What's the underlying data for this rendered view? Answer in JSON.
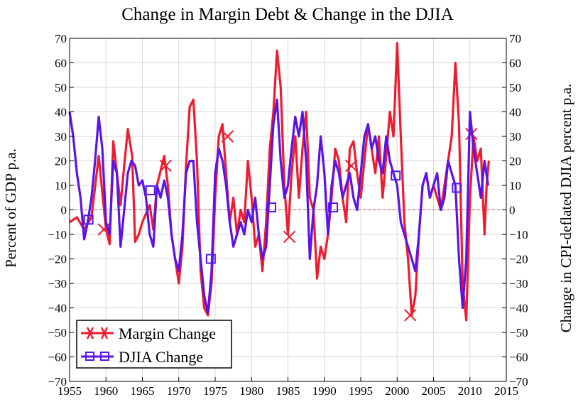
{
  "chart_data": {
    "type": "line",
    "title": "Change in Margin Debt & Change in the DJIA",
    "ylabel": "Percent of GDP p.a.",
    "y2label": "Change in CPI-deflated DJIA percent p.a.",
    "xlim": [
      1955,
      2015
    ],
    "ylim": [
      -70,
      70
    ],
    "y2lim": [
      -70,
      70
    ],
    "x_ticks": [
      1955,
      1960,
      1965,
      1970,
      1975,
      1980,
      1985,
      1990,
      1995,
      2000,
      2005,
      2010,
      2015
    ],
    "y_ticks": [
      -70,
      -60,
      -50,
      -40,
      -30,
      -20,
      -10,
      0,
      10,
      20,
      30,
      40,
      50,
      60,
      70
    ],
    "y_tick_labels": [
      "−70",
      "−60",
      "−50",
      "−40",
      "−30",
      "−20",
      "−10",
      "0",
      "10",
      "20",
      "30",
      "40",
      "50",
      "60",
      "70"
    ],
    "grid": true,
    "zero_line": true,
    "legend_position": "bottom-left",
    "series": [
      {
        "name": "Margin Change",
        "color": "#ee1c2e",
        "marker": "x",
        "axis": "left",
        "markers_at": [
          [
            1959.7,
            -8
          ],
          [
            1968.2,
            18
          ],
          [
            1976.7,
            30
          ],
          [
            1985.2,
            -11
          ],
          [
            1993.7,
            18
          ],
          [
            2001.8,
            -43
          ],
          [
            2010.2,
            31
          ]
        ],
        "x": [
          1955,
          1956,
          1957,
          1958,
          1959,
          1960,
          1960.5,
          1961,
          1962,
          1962.5,
          1963,
          1963.6,
          1964,
          1964.5,
          1965,
          1966,
          1966.5,
          1967,
          1968,
          1968.5,
          1969,
          1969.5,
          1970,
          1970.5,
          1971,
          1971.5,
          1972,
          1972.5,
          1973,
          1973.5,
          1974,
          1974.5,
          1975,
          1975.5,
          1976,
          1976.5,
          1977,
          1977.5,
          1978,
          1978.5,
          1979,
          1979.5,
          1980,
          1980.5,
          1981,
          1981.5,
          1982,
          1982.5,
          1983,
          1983.5,
          1984,
          1984.5,
          1985,
          1985.5,
          1986,
          1986.5,
          1987,
          1987.5,
          1988,
          1988.5,
          1989,
          1989.5,
          1990,
          1990.5,
          1991,
          1991.5,
          1992,
          1992.5,
          1993,
          1993.5,
          1994,
          1994.5,
          1995,
          1995.5,
          1996,
          1996.5,
          1997,
          1997.5,
          1998,
          1998.5,
          1999,
          1999.5,
          2000,
          2000.5,
          2001,
          2001.5,
          2002,
          2002.5,
          2003,
          2003.5,
          2004,
          2004.5,
          2005,
          2005.5,
          2006,
          2006.5,
          2007,
          2007.5,
          2008,
          2008.5,
          2009,
          2009.5,
          2010,
          2010.5,
          2011,
          2011.5,
          2012,
          2012.3,
          2012.6
        ],
        "y": [
          -5,
          -3,
          -8,
          -3,
          22,
          -8,
          -14,
          28,
          2,
          18,
          33,
          22,
          -13,
          -10,
          -5,
          2,
          -8,
          10,
          22,
          10,
          -10,
          -20,
          -30,
          -15,
          18,
          42,
          45,
          20,
          -25,
          -40,
          -43,
          -30,
          5,
          30,
          35,
          15,
          -5,
          5,
          -10,
          0,
          -5,
          20,
          5,
          -15,
          -10,
          -25,
          -5,
          25,
          40,
          65,
          50,
          10,
          -10,
          15,
          30,
          5,
          25,
          40,
          5,
          0,
          -28,
          -15,
          -20,
          -10,
          5,
          25,
          20,
          5,
          -5,
          25,
          28,
          15,
          5,
          20,
          35,
          25,
          15,
          30,
          5,
          22,
          40,
          30,
          68,
          30,
          -5,
          -20,
          -43,
          -35,
          -10,
          10,
          15,
          5,
          10,
          5,
          0,
          10,
          20,
          30,
          60,
          35,
          -30,
          -45,
          5,
          30,
          20,
          25,
          -10,
          10,
          20
        ]
      },
      {
        "name": "DJIA Change",
        "color": "#5a14ea",
        "marker": "square",
        "axis": "right",
        "markers_at": [
          [
            1957.6,
            -4
          ],
          [
            1966.1,
            8
          ],
          [
            1974.4,
            -20
          ],
          [
            1982.7,
            1
          ],
          [
            1991.2,
            1
          ],
          [
            1999.8,
            14
          ],
          [
            2008.2,
            9
          ]
        ],
        "x": [
          1955,
          1955.5,
          1956,
          1956.5,
          1957,
          1957.5,
          1958,
          1958.5,
          1959,
          1959.5,
          1960,
          1960.5,
          1961,
          1961.5,
          1962,
          1962.5,
          1963,
          1963.5,
          1964,
          1964.5,
          1965,
          1965.5,
          1966,
          1966.5,
          1967,
          1967.5,
          1968,
          1968.5,
          1969,
          1969.5,
          1970,
          1970.5,
          1971,
          1971.5,
          1972,
          1972.5,
          1973,
          1973.5,
          1974,
          1974.5,
          1975,
          1975.5,
          1976,
          1976.5,
          1977,
          1977.5,
          1978,
          1978.5,
          1979,
          1979.5,
          1980,
          1980.5,
          1981,
          1981.5,
          1982,
          1982.5,
          1983,
          1983.5,
          1984,
          1984.5,
          1985,
          1985.5,
          1986,
          1986.5,
          1987,
          1987.5,
          1988,
          1988.5,
          1989,
          1989.5,
          1990,
          1990.5,
          1991,
          1991.5,
          1992,
          1992.5,
          1993,
          1993.5,
          1994,
          1994.5,
          1995,
          1995.5,
          1996,
          1996.5,
          1997,
          1997.5,
          1998,
          1998.5,
          1999,
          1999.5,
          2000,
          2000.5,
          2001,
          2001.5,
          2002,
          2002.5,
          2003,
          2003.5,
          2004,
          2004.5,
          2005,
          2005.5,
          2006,
          2006.5,
          2007,
          2007.5,
          2008,
          2008.5,
          2009,
          2009.5,
          2010,
          2010.5,
          2011,
          2011.5,
          2012,
          2012.5
        ],
        "y": [
          40,
          30,
          15,
          5,
          -12,
          -5,
          5,
          20,
          38,
          25,
          -5,
          -10,
          20,
          15,
          -15,
          0,
          15,
          20,
          18,
          10,
          12,
          5,
          -10,
          -15,
          10,
          5,
          12,
          5,
          -10,
          -20,
          -25,
          -10,
          15,
          20,
          20,
          -5,
          -20,
          -35,
          -42,
          -25,
          15,
          25,
          20,
          10,
          -5,
          -15,
          -10,
          -5,
          -10,
          0,
          -5,
          5,
          -10,
          -20,
          -15,
          10,
          35,
          45,
          20,
          5,
          10,
          25,
          38,
          30,
          40,
          20,
          -20,
          0,
          10,
          30,
          15,
          -10,
          10,
          20,
          15,
          5,
          10,
          15,
          5,
          0,
          15,
          30,
          35,
          25,
          30,
          20,
          15,
          30,
          20,
          15,
          10,
          -5,
          -10,
          -15,
          -20,
          -25,
          -10,
          10,
          15,
          5,
          10,
          15,
          0,
          5,
          20,
          15,
          10,
          -20,
          -40,
          -20,
          40,
          25,
          15,
          5,
          20,
          10
        ]
      }
    ]
  }
}
